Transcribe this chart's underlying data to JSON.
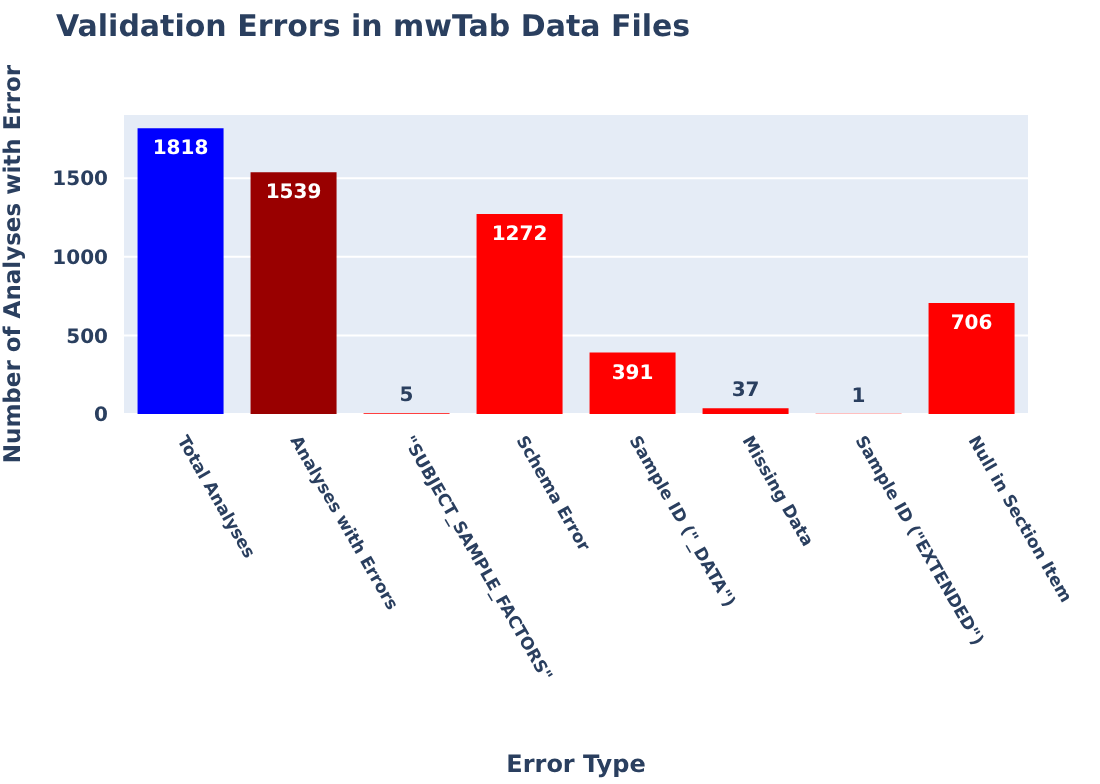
{
  "chart_data": {
    "type": "bar",
    "title": "Validation Errors in mwTab Data Files",
    "xlabel": "Error Type",
    "ylabel": "Number of Analyses with Error",
    "categories": [
      "Total Analyses",
      "Analyses with Errors",
      "\"SUBJECT_SAMPLE_FACTORS\"",
      "Schema Error",
      "Sample ID (\"_DATA\")",
      "Missing Data",
      "Sample ID (\"EXTENDED\")",
      "Null in Section Item"
    ],
    "values": [
      1818,
      1539,
      5,
      1272,
      391,
      37,
      1,
      706
    ],
    "colors": [
      "#0000ff",
      "#990000",
      "#ff0000",
      "#ff0000",
      "#ff0000",
      "#ff0000",
      "#ff0000",
      "#ff0000"
    ],
    "ylim": [
      0,
      1909
    ],
    "yticks": [
      0,
      500,
      1000,
      1500
    ],
    "grid": "y",
    "data_labels": true
  }
}
